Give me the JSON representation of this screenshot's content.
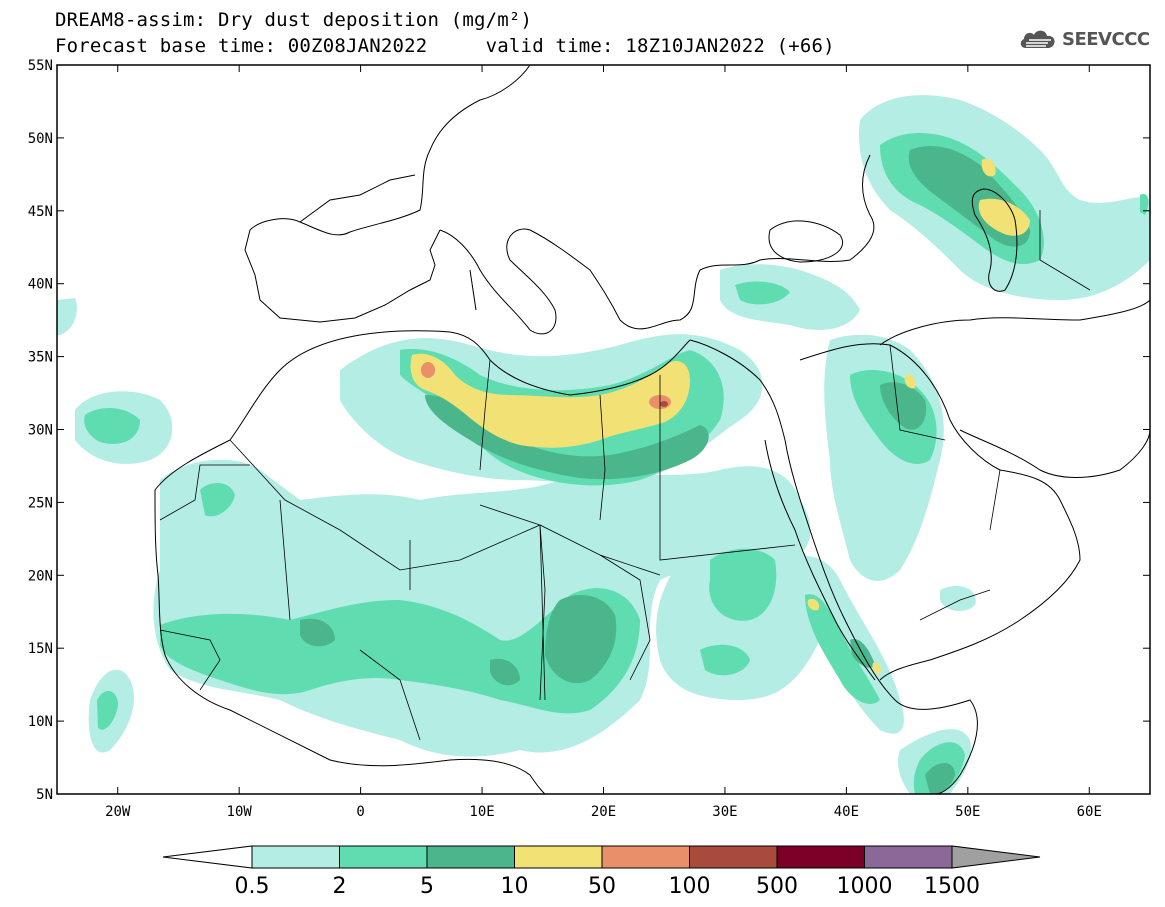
{
  "title": {
    "line1": "DREAM8-assim: Dry dust deposition (mg/m²)",
    "line2": "Forecast base time: 00Z08JAN2022     valid time: 18Z10JAN2022 (+66)"
  },
  "logo": {
    "text": "SEEVCCC",
    "icon": "cloud-icon"
  },
  "map": {
    "lon_range": [
      -25,
      65
    ],
    "lat_range": [
      5,
      55
    ],
    "lat_ticks": [
      "55N",
      "50N",
      "45N",
      "40N",
      "35N",
      "30N",
      "25N",
      "20N",
      "15N",
      "10N",
      "5N"
    ],
    "lon_ticks": [
      "20W",
      "10W",
      "0",
      "10E",
      "20E",
      "30E",
      "40E",
      "50E",
      "60E"
    ]
  },
  "colorbar": {
    "labels": [
      "0.5",
      "2",
      "5",
      "10",
      "50",
      "100",
      "500",
      "1000",
      "1500"
    ],
    "colors": [
      "#b3ede4",
      "#5fdcb0",
      "#4bb68c",
      "#f2e276",
      "#e9906a",
      "#a84b3c",
      "#7a0027",
      "#8c6898"
    ],
    "under_color": "#ffffff",
    "over_color": "#a0a0a0"
  }
}
